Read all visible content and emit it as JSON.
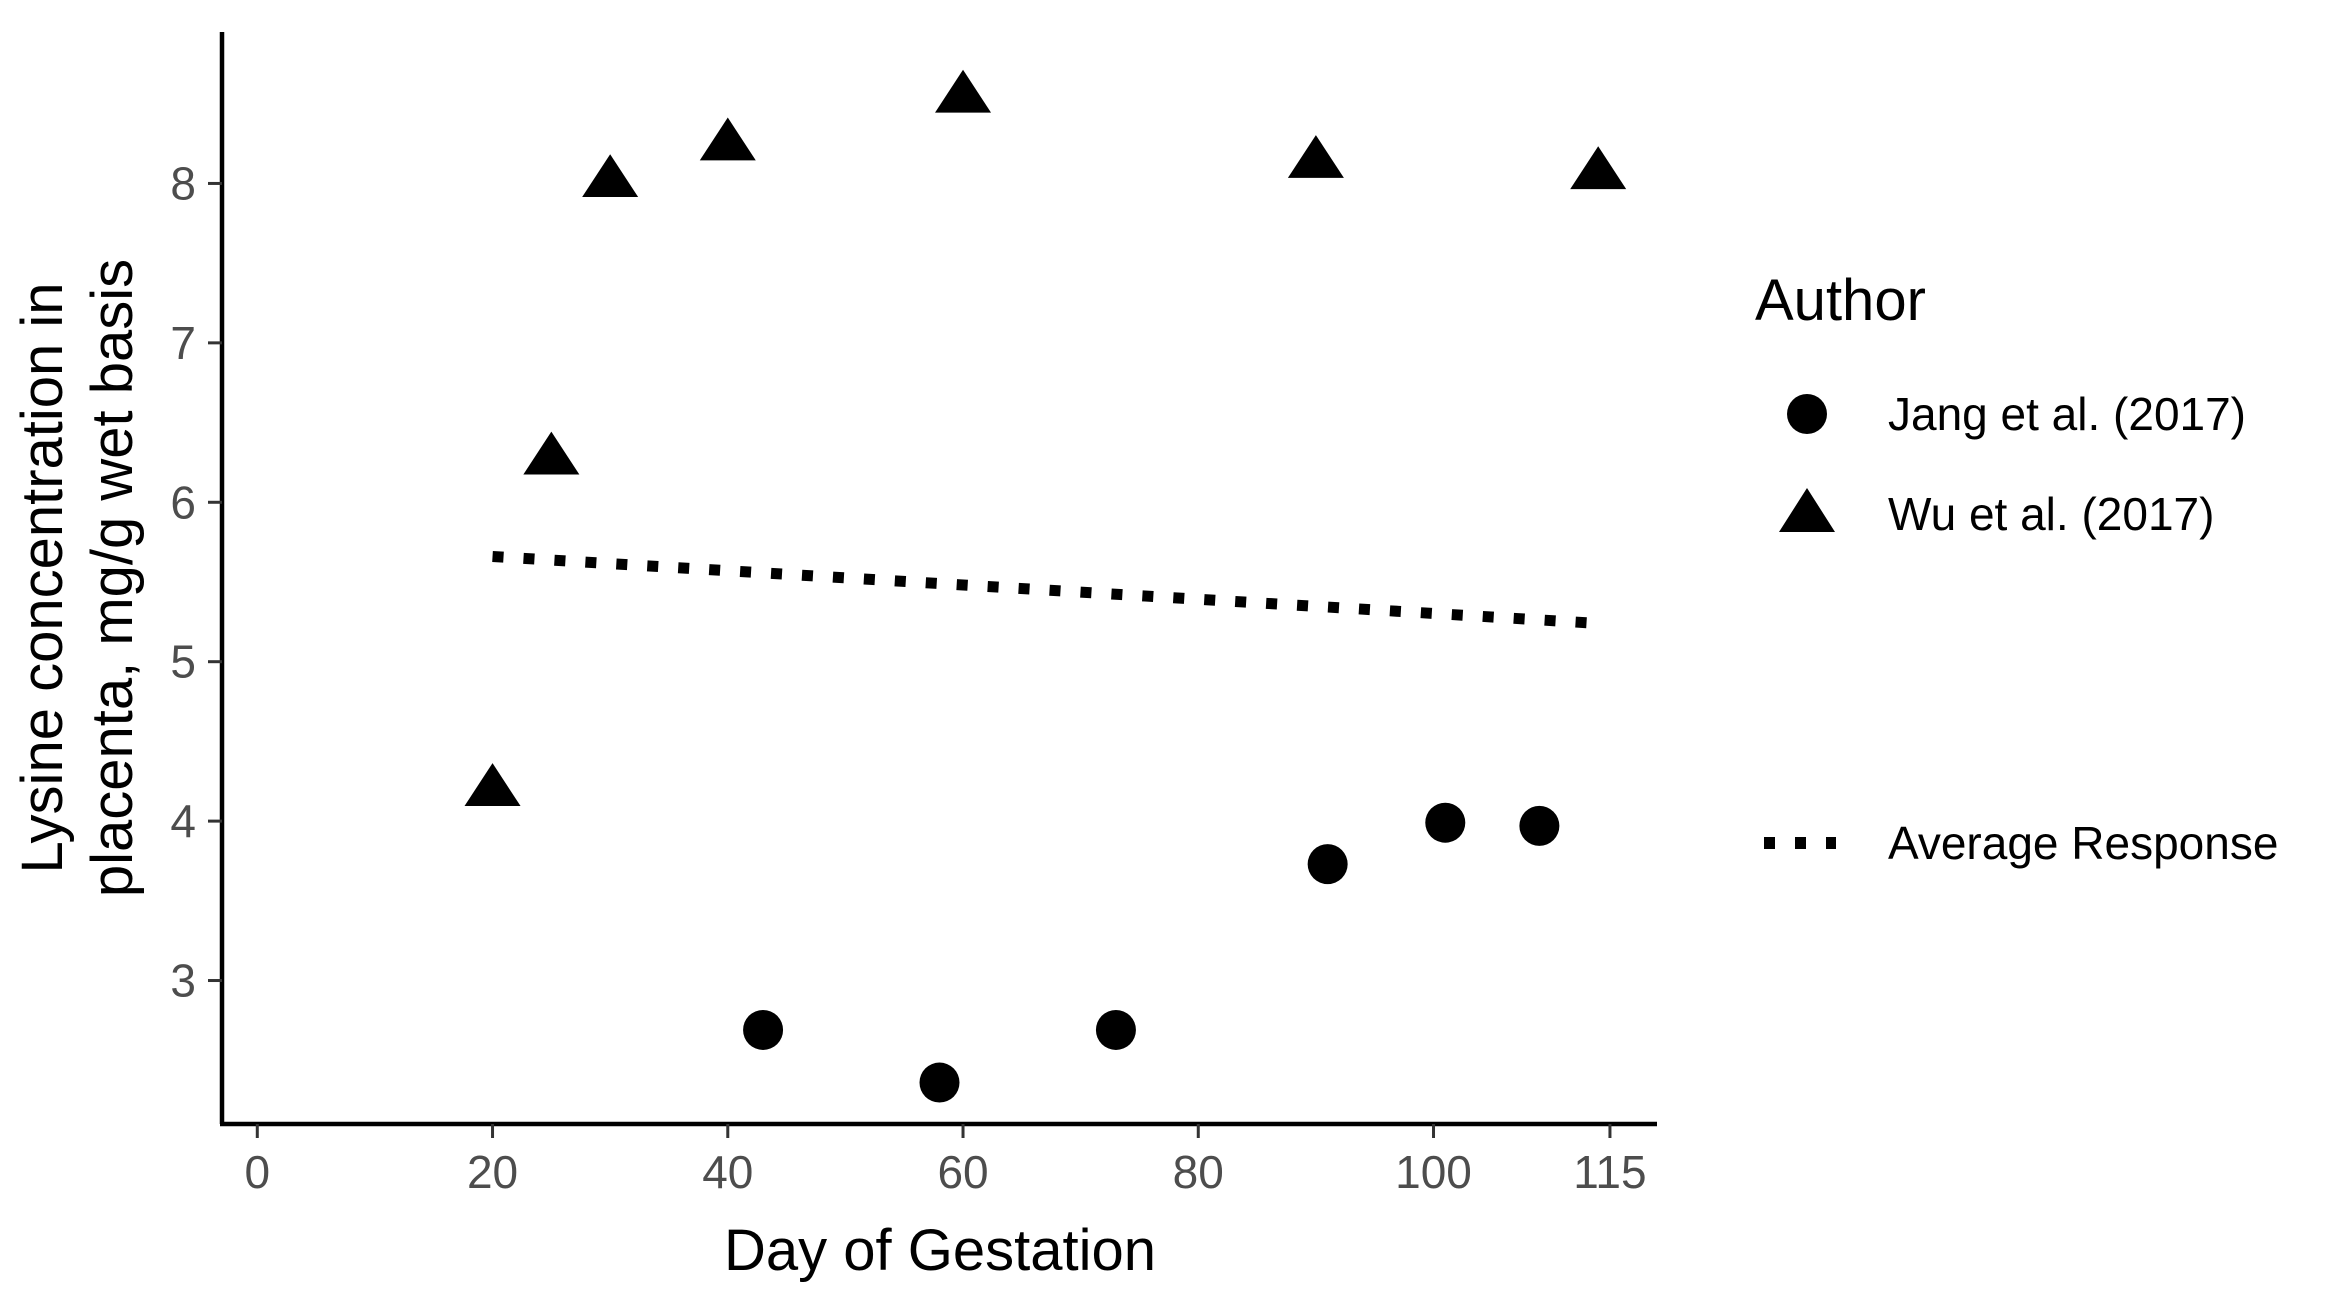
{
  "chart_data": {
    "type": "scatter",
    "xlabel": "Day of Gestation",
    "ylabel_lines": [
      "Lysine concentration in",
      "placenta, mg/g wet basis"
    ],
    "xlim": [
      -3,
      119
    ],
    "ylim": [
      2.1,
      8.95
    ],
    "x_ticks": [
      {
        "value": 0,
        "label": "0"
      },
      {
        "value": 20,
        "label": "20"
      },
      {
        "value": 40,
        "label": "40"
      },
      {
        "value": 60,
        "label": "60"
      },
      {
        "value": 80,
        "label": "80"
      },
      {
        "value": 100,
        "label": "100"
      },
      {
        "value": 115,
        "label": "115"
      }
    ],
    "y_ticks": [
      {
        "value": 3,
        "label": "3"
      },
      {
        "value": 4,
        "label": "4"
      },
      {
        "value": 5,
        "label": "5"
      },
      {
        "value": 6,
        "label": "6"
      },
      {
        "value": 7,
        "label": "7"
      },
      {
        "value": 8,
        "label": "8"
      }
    ],
    "grid": false,
    "series": [
      {
        "name": "Jang et al. (2017)",
        "marker": "circle",
        "points": [
          {
            "x": 43,
            "y": 2.69
          },
          {
            "x": 58,
            "y": 2.36
          },
          {
            "x": 73,
            "y": 2.69
          },
          {
            "x": 91,
            "y": 3.73
          },
          {
            "x": 101,
            "y": 3.99
          },
          {
            "x": 109,
            "y": 3.97
          }
        ]
      },
      {
        "name": "Wu et al. (2017)",
        "marker": "triangle",
        "points": [
          {
            "x": 20,
            "y": 4.2
          },
          {
            "x": 25,
            "y": 6.28
          },
          {
            "x": 30,
            "y": 8.02
          },
          {
            "x": 40,
            "y": 8.25
          },
          {
            "x": 60,
            "y": 8.55
          },
          {
            "x": 90,
            "y": 8.14
          },
          {
            "x": 114,
            "y": 8.07
          }
        ]
      }
    ],
    "trend_line": {
      "name": "Average Response",
      "style": "dotted",
      "x": [
        20,
        114
      ],
      "y": [
        5.66,
        5.24
      ]
    },
    "legend": {
      "title": "Author",
      "position": "right"
    }
  }
}
